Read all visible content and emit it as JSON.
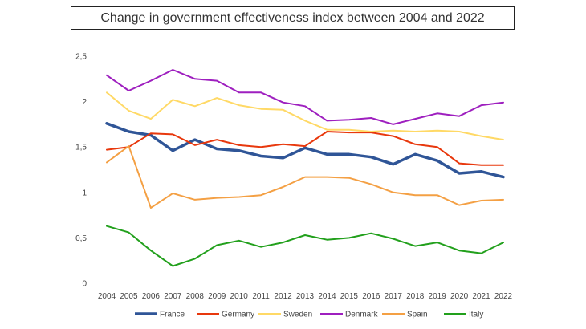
{
  "chart_data": {
    "type": "line",
    "title": "Change in government effectiveness index between 2004 and 2022",
    "xlabel": "",
    "ylabel": "",
    "ylim": [
      0,
      2.5
    ],
    "yticks": [
      "0",
      "0,5",
      "1",
      "1,5",
      "2",
      "2,5"
    ],
    "categories": [
      "2004",
      "2005",
      "2006",
      "2007",
      "2008",
      "2009",
      "2010",
      "2011",
      "2012",
      "2013",
      "2014",
      "2015",
      "2016",
      "2017",
      "2018",
      "2019",
      "2020",
      "2021",
      "2022"
    ],
    "series": [
      {
        "name": "France",
        "color": "#2F5597",
        "values": [
          1.76,
          1.67,
          1.63,
          1.46,
          1.58,
          1.48,
          1.46,
          1.4,
          1.38,
          1.49,
          1.42,
          1.42,
          1.39,
          1.31,
          1.42,
          1.35,
          1.21,
          1.23,
          1.17
        ]
      },
      {
        "name": "Germany",
        "color": "#E8380D",
        "values": [
          1.47,
          1.5,
          1.65,
          1.64,
          1.52,
          1.58,
          1.52,
          1.5,
          1.53,
          1.51,
          1.67,
          1.66,
          1.66,
          1.62,
          1.53,
          1.5,
          1.32,
          1.3,
          1.3
        ]
      },
      {
        "name": "Sweden",
        "color": "#FFD966",
        "values": [
          2.1,
          1.9,
          1.81,
          2.02,
          1.95,
          2.04,
          1.96,
          1.92,
          1.91,
          1.79,
          1.69,
          1.69,
          1.67,
          1.68,
          1.67,
          1.68,
          1.67,
          1.62,
          1.58
        ]
      },
      {
        "name": "Denmark",
        "color": "#9E1FBF",
        "values": [
          2.29,
          2.12,
          2.23,
          2.35,
          2.25,
          2.23,
          2.1,
          2.1,
          1.99,
          1.95,
          1.79,
          1.8,
          1.82,
          1.75,
          1.81,
          1.87,
          1.84,
          1.96,
          1.99
        ]
      },
      {
        "name": "Spain",
        "color": "#F4A044",
        "values": [
          1.33,
          1.51,
          0.83,
          0.99,
          0.92,
          0.94,
          0.95,
          0.97,
          1.06,
          1.17,
          1.17,
          1.16,
          1.09,
          1.0,
          0.97,
          0.97,
          0.86,
          0.91,
          0.92
        ]
      },
      {
        "name": "Italy",
        "color": "#22A01C",
        "values": [
          0.63,
          0.56,
          0.36,
          0.19,
          0.27,
          0.42,
          0.47,
          0.4,
          0.45,
          0.53,
          0.48,
          0.5,
          0.55,
          0.49,
          0.41,
          0.45,
          0.36,
          0.33,
          0.45
        ]
      }
    ],
    "legend_position": "bottom",
    "grid": false
  }
}
